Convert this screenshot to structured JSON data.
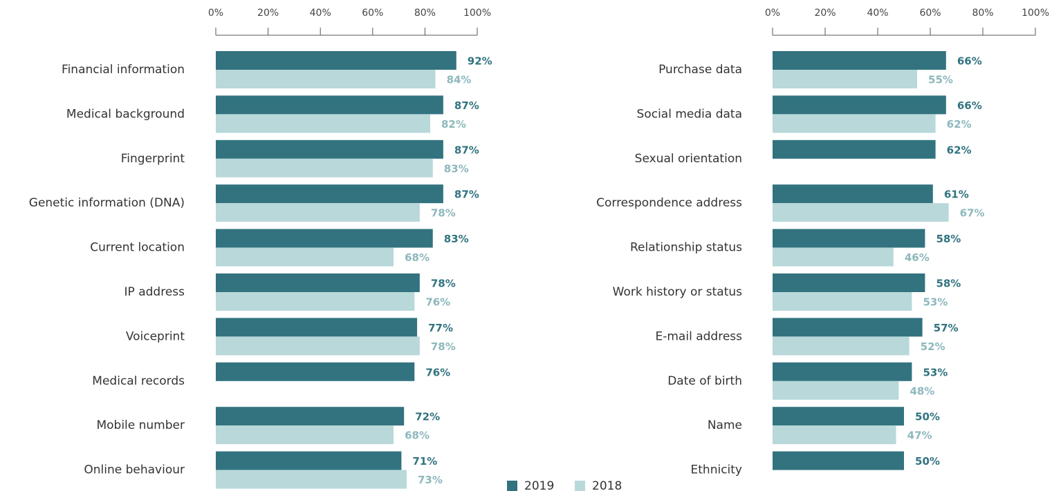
{
  "chart_data": [
    {
      "type": "bar",
      "orientation": "horizontal",
      "categories": [
        "Financial information",
        "Medical background",
        "Fingerprint",
        "Genetic information (DNA)",
        "Current location",
        "IP address",
        "Voiceprint",
        "Medical records",
        "Mobile number",
        "Online behaviour"
      ],
      "series": [
        {
          "name": "2019",
          "color": "#32737f",
          "label_color": "#32737f",
          "values": [
            92,
            87,
            87,
            87,
            83,
            78,
            77,
            76,
            72,
            71
          ],
          "value_labels": [
            "92%",
            "87%",
            "87%",
            "87%",
            "83%",
            "78%",
            "77%",
            "76%",
            "72%",
            "71%"
          ]
        },
        {
          "name": "2018",
          "color": "#b8d8da",
          "label_color": "#8db8bc",
          "values": [
            84,
            82,
            83,
            78,
            68,
            76,
            78,
            null,
            68,
            73
          ],
          "value_labels": [
            "84%",
            "82%",
            "83%",
            "78%",
            "68%",
            "76%",
            "78%",
            null,
            "68%",
            "73%"
          ]
        }
      ],
      "xlim": [
        0,
        100
      ],
      "xticks": [
        {
          "value": 0,
          "label": "0%"
        },
        {
          "value": 20,
          "label": "20%"
        },
        {
          "value": 40,
          "label": "40%"
        },
        {
          "value": 60,
          "label": "60%"
        },
        {
          "value": 80,
          "label": "80%"
        },
        {
          "value": 100,
          "label": "100%"
        }
      ],
      "legend": "bottom"
    },
    {
      "type": "bar",
      "orientation": "horizontal",
      "categories": [
        "Purchase data",
        "Social media data",
        "Sexual orientation",
        "Correspondence address",
        "Relationship status",
        "Work history or status",
        "E-mail address",
        "Date of birth",
        "Name",
        "Ethnicity"
      ],
      "series": [
        {
          "color": "#32737f",
          "label_color": "#32737f",
          "values": [
            66,
            66,
            62,
            61,
            58,
            58,
            57,
            53,
            50,
            50
          ],
          "value_labels": [
            "66%",
            "66%",
            "62%",
            "61%",
            "58%",
            "58%",
            "57%",
            "53%",
            "50%",
            "50%"
          ]
        },
        {
          "color": "#b8d8da",
          "label_color": "#8db8bc",
          "values": [
            55,
            62,
            null,
            67,
            46,
            53,
            52,
            48,
            47,
            null
          ],
          "value_labels": [
            "55%",
            "62%",
            null,
            "67%",
            "46%",
            "53%",
            "52%",
            "48%",
            "47%",
            null
          ]
        }
      ],
      "xlim": [
        0,
        100
      ],
      "xticks": [
        {
          "value": 0,
          "label": "0%"
        },
        {
          "value": 20,
          "label": "20%"
        },
        {
          "value": 40,
          "label": "40%"
        },
        {
          "value": 60,
          "label": "60%"
        },
        {
          "value": 80,
          "label": "80%"
        },
        {
          "value": 100,
          "label": "100%"
        }
      ]
    }
  ]
}
